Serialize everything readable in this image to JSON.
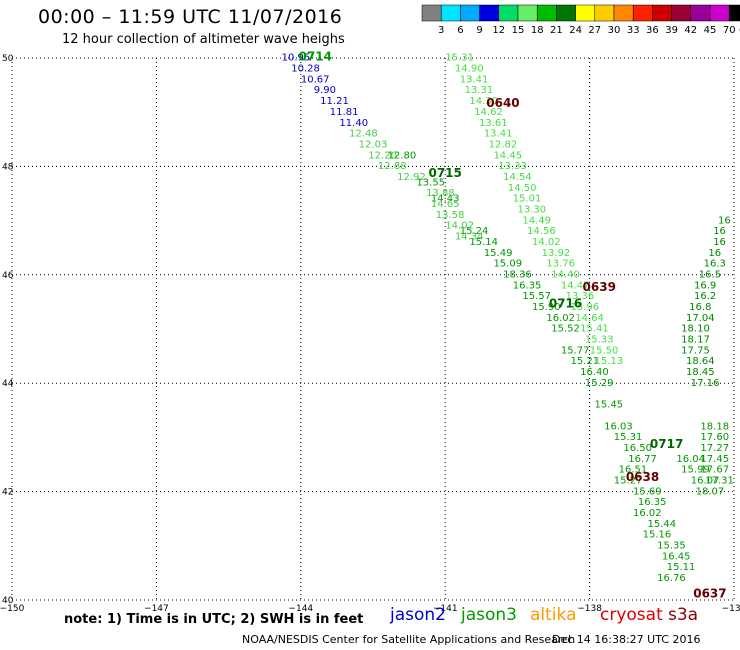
{
  "header": {
    "title": "00:00 – 11:59 UTC 11/07/2016",
    "subtitle": "12 hour collection of altimeter wave heighs"
  },
  "footer": {
    "note": "note: 1) Time is in UTC; 2) SWH is in feet",
    "credit": "NOAA/NESDIS Center for Satellite Applications and Research",
    "timestamp": "Dec 14 16:38:27 UTC 2016"
  },
  "satellites": {
    "jason2": {
      "label": "jason2",
      "color": "#0000cc"
    },
    "jason3": {
      "label": "jason3",
      "color": "#009900"
    },
    "altika": {
      "label": "altika",
      "color": "#ff9900"
    },
    "cryosat": {
      "label": "cryosat",
      "color": "#dd0000"
    },
    "s3a": {
      "label": "s3a",
      "color": "#8b0000"
    }
  },
  "chart_data": {
    "type": "scatter",
    "xlim": [
      -150,
      -135
    ],
    "ylim": [
      40,
      50
    ],
    "x_ticks": [
      -150,
      -147,
      -144,
      -141,
      -138,
      -135
    ],
    "y_ticks": [
      40,
      42,
      44,
      46,
      48,
      50
    ],
    "grid": true,
    "colorbar": {
      "unit": "(ft)",
      "labels": [
        "3",
        "6",
        "9",
        "12",
        "15",
        "18",
        "21",
        "24",
        "27",
        "30",
        "33",
        "36",
        "39",
        "42",
        "45",
        "70"
      ],
      "colors": [
        "#808080",
        "#00e5ff",
        "#00aaff",
        "#0000dd",
        "#00dd66",
        "#66ee66",
        "#00bb00",
        "#007700",
        "#ffff00",
        "#ffcc00",
        "#ff8800",
        "#ff2200",
        "#cc0000",
        "#990033",
        "#990099",
        "#cc00cc",
        "#000000"
      ]
    },
    "time_labels": [
      {
        "text": "0714",
        "lon": -143.7,
        "lat": 49.95,
        "color": "#009900"
      },
      {
        "text": "0715",
        "lon": -141.0,
        "lat": 47.8,
        "color": "#006600"
      },
      {
        "text": "0716",
        "lon": -138.5,
        "lat": 45.4,
        "color": "#006600"
      },
      {
        "text": "0717",
        "lon": -136.4,
        "lat": 42.8,
        "color": "#006600"
      },
      {
        "text": "0640",
        "lon": -139.8,
        "lat": 49.1,
        "color": "#660000"
      },
      {
        "text": "0639",
        "lon": -137.8,
        "lat": 45.7,
        "color": "#660000"
      },
      {
        "text": "0638",
        "lon": -136.9,
        "lat": 42.2,
        "color": "#660000"
      },
      {
        "text": "0637",
        "lon": -135.5,
        "lat": 40.05,
        "color": "#660000"
      }
    ],
    "series": [
      {
        "name": "jason2",
        "color": "#0000cc",
        "points": [
          {
            "lon": -144.1,
            "lat": 49.95,
            "v": "10.95"
          },
          {
            "lon": -143.9,
            "lat": 49.75,
            "v": "10.28"
          },
          {
            "lon": -143.7,
            "lat": 49.55,
            "v": "10.67"
          },
          {
            "lon": -143.5,
            "lat": 49.35,
            "v": "9.90"
          },
          {
            "lon": -143.3,
            "lat": 49.15,
            "v": "11.21"
          },
          {
            "lon": -143.1,
            "lat": 48.95,
            "v": "11.81"
          },
          {
            "lon": -142.9,
            "lat": 48.75,
            "v": "11.40"
          }
        ]
      },
      {
        "name": "jason3",
        "color": "#009900",
        "points": [
          {
            "lon": -141.9,
            "lat": 48.15,
            "v": "12.80"
          },
          {
            "lon": -141.3,
            "lat": 47.65,
            "v": "13.55"
          },
          {
            "lon": -141.0,
            "lat": 47.35,
            "v": "14.43"
          },
          {
            "lon": -140.4,
            "lat": 46.75,
            "v": "15.24"
          },
          {
            "lon": -140.2,
            "lat": 46.55,
            "v": "15.14"
          },
          {
            "lon": -139.9,
            "lat": 46.35,
            "v": "15.49"
          },
          {
            "lon": -139.7,
            "lat": 46.15,
            "v": "15.09"
          },
          {
            "lon": -139.5,
            "lat": 45.95,
            "v": "18.36"
          },
          {
            "lon": -139.3,
            "lat": 45.75,
            "v": "16.35"
          },
          {
            "lon": -139.1,
            "lat": 45.55,
            "v": "15.57"
          },
          {
            "lon": -138.9,
            "lat": 45.35,
            "v": "15.90"
          },
          {
            "lon": -138.6,
            "lat": 45.15,
            "v": "16.02"
          },
          {
            "lon": -138.5,
            "lat": 44.95,
            "v": "15.52"
          },
          {
            "lon": -138.3,
            "lat": 44.55,
            "v": "15.77"
          },
          {
            "lon": -138.1,
            "lat": 44.35,
            "v": "15.21"
          },
          {
            "lon": -137.9,
            "lat": 44.15,
            "v": "16.40"
          },
          {
            "lon": -137.8,
            "lat": 43.95,
            "v": "15.29"
          },
          {
            "lon": -137.6,
            "lat": 43.55,
            "v": "15.45"
          },
          {
            "lon": -137.4,
            "lat": 43.15,
            "v": "16.03"
          },
          {
            "lon": -137.2,
            "lat": 42.95,
            "v": "15.31"
          },
          {
            "lon": -137.0,
            "lat": 42.75,
            "v": "16.50"
          },
          {
            "lon": -136.9,
            "lat": 42.55,
            "v": "16.77"
          },
          {
            "lon": -137.1,
            "lat": 42.35,
            "v": "16.51"
          },
          {
            "lon": -137.2,
            "lat": 42.15,
            "v": "15.27"
          },
          {
            "lon": -136.8,
            "lat": 41.95,
            "v": "15.69"
          },
          {
            "lon": -136.7,
            "lat": 41.75,
            "v": "16.35"
          },
          {
            "lon": -136.8,
            "lat": 41.55,
            "v": "16.02"
          },
          {
            "lon": -136.5,
            "lat": 41.35,
            "v": "15.44"
          },
          {
            "lon": -136.6,
            "lat": 41.15,
            "v": "15.16"
          },
          {
            "lon": -136.3,
            "lat": 40.95,
            "v": "15.35"
          },
          {
            "lon": -136.2,
            "lat": 40.75,
            "v": "16.45"
          },
          {
            "lon": -136.1,
            "lat": 40.55,
            "v": "15.11"
          },
          {
            "lon": -136.3,
            "lat": 40.35,
            "v": "16.76"
          },
          {
            "lon": -135.9,
            "lat": 42.55,
            "v": "16.04"
          },
          {
            "lon": -135.8,
            "lat": 42.35,
            "v": "15.99"
          },
          {
            "lon": -135.6,
            "lat": 42.15,
            "v": "16.07"
          },
          {
            "lon": -135.4,
            "lat": 43.15,
            "v": "18.18"
          },
          {
            "lon": -135.4,
            "lat": 42.95,
            "v": "17.60"
          },
          {
            "lon": -135.4,
            "lat": 42.75,
            "v": "17.27"
          },
          {
            "lon": -135.4,
            "lat": 42.55,
            "v": "17.45"
          },
          {
            "lon": -135.4,
            "lat": 42.35,
            "v": "17.67"
          },
          {
            "lon": -135.3,
            "lat": 42.15,
            "v": "17.31"
          },
          {
            "lon": -135.5,
            "lat": 41.95,
            "v": "18.07"
          }
        ]
      },
      {
        "name": "jason3-light",
        "color": "#44cc44",
        "points": [
          {
            "lon": -142.7,
            "lat": 48.55,
            "v": "12.48"
          },
          {
            "lon": -142.5,
            "lat": 48.35,
            "v": "12.03"
          },
          {
            "lon": -142.3,
            "lat": 48.15,
            "v": "12.20"
          },
          {
            "lon": -142.1,
            "lat": 47.95,
            "v": "12.88"
          },
          {
            "lon": -141.7,
            "lat": 47.75,
            "v": "12.92"
          },
          {
            "lon": -141.1,
            "lat": 47.45,
            "v": "13.88"
          },
          {
            "lon": -141.0,
            "lat": 47.25,
            "v": "14.65"
          },
          {
            "lon": -140.9,
            "lat": 47.05,
            "v": "13.58"
          },
          {
            "lon": -140.7,
            "lat": 46.85,
            "v": "14.02"
          },
          {
            "lon": -140.5,
            "lat": 46.65,
            "v": "14.34"
          }
        ]
      },
      {
        "name": "s3a",
        "color": "#44dd44",
        "points": [
          {
            "lon": -140.7,
            "lat": 49.95,
            "v": "15.31"
          },
          {
            "lon": -140.5,
            "lat": 49.75,
            "v": "14.90"
          },
          {
            "lon": -140.4,
            "lat": 49.55,
            "v": "13.41"
          },
          {
            "lon": -140.3,
            "lat": 49.35,
            "v": "13.31"
          },
          {
            "lon": -140.2,
            "lat": 49.15,
            "v": "14.30"
          },
          {
            "lon": -140.1,
            "lat": 48.95,
            "v": "14.62"
          },
          {
            "lon": -140.0,
            "lat": 48.75,
            "v": "13.61"
          },
          {
            "lon": -139.9,
            "lat": 48.55,
            "v": "13.41"
          },
          {
            "lon": -139.8,
            "lat": 48.35,
            "v": "12.82"
          },
          {
            "lon": -139.7,
            "lat": 48.15,
            "v": "14.45"
          },
          {
            "lon": -139.6,
            "lat": 47.95,
            "v": "13.33"
          },
          {
            "lon": -139.5,
            "lat": 47.75,
            "v": "14.54"
          },
          {
            "lon": -139.4,
            "lat": 47.55,
            "v": "14.50"
          },
          {
            "lon": -139.3,
            "lat": 47.35,
            "v": "15.01"
          },
          {
            "lon": -139.2,
            "lat": 47.15,
            "v": "13.30"
          },
          {
            "lon": -139.1,
            "lat": 46.95,
            "v": "14.49"
          },
          {
            "lon": -139.0,
            "lat": 46.75,
            "v": "14.56"
          },
          {
            "lon": -138.9,
            "lat": 46.55,
            "v": "14.02"
          },
          {
            "lon": -138.7,
            "lat": 46.35,
            "v": "13.92"
          },
          {
            "lon": -138.6,
            "lat": 46.15,
            "v": "13.76"
          },
          {
            "lon": -138.5,
            "lat": 45.95,
            "v": "14.40"
          },
          {
            "lon": -138.3,
            "lat": 45.75,
            "v": "14.47"
          },
          {
            "lon": -138.2,
            "lat": 45.55,
            "v": "13.36"
          },
          {
            "lon": -138.1,
            "lat": 45.35,
            "v": "15.96"
          },
          {
            "lon": -138.0,
            "lat": 45.15,
            "v": "14.64"
          },
          {
            "lon": -137.9,
            "lat": 44.95,
            "v": "15.41"
          },
          {
            "lon": -137.8,
            "lat": 44.75,
            "v": "15.33"
          },
          {
            "lon": -137.7,
            "lat": 44.55,
            "v": "15.50"
          },
          {
            "lon": -137.6,
            "lat": 44.35,
            "v": "15.13"
          }
        ]
      },
      {
        "name": "cryosat",
        "color": "#008800",
        "points": [
          {
            "lon": -135.2,
            "lat": 46.95,
            "v": "16"
          },
          {
            "lon": -135.3,
            "lat": 46.75,
            "v": "16"
          },
          {
            "lon": -135.3,
            "lat": 46.55,
            "v": "16"
          },
          {
            "lon": -135.4,
            "lat": 46.35,
            "v": "16"
          },
          {
            "lon": -135.4,
            "lat": 46.15,
            "v": "16.3"
          },
          {
            "lon": -135.5,
            "lat": 45.95,
            "v": "16.5"
          },
          {
            "lon": -135.6,
            "lat": 45.75,
            "v": "16.9"
          },
          {
            "lon": -135.6,
            "lat": 45.55,
            "v": "16.2"
          },
          {
            "lon": -135.7,
            "lat": 45.35,
            "v": "16.8"
          },
          {
            "lon": -135.7,
            "lat": 45.15,
            "v": "17.04"
          },
          {
            "lon": -135.8,
            "lat": 44.95,
            "v": "18.10"
          },
          {
            "lon": -135.8,
            "lat": 44.75,
            "v": "18.17"
          },
          {
            "lon": -135.8,
            "lat": 44.55,
            "v": "17.75"
          },
          {
            "lon": -135.7,
            "lat": 44.35,
            "v": "18.64"
          },
          {
            "lon": -135.7,
            "lat": 44.15,
            "v": "18.45"
          },
          {
            "lon": -135.6,
            "lat": 43.95,
            "v": "17.16"
          }
        ]
      }
    ]
  }
}
